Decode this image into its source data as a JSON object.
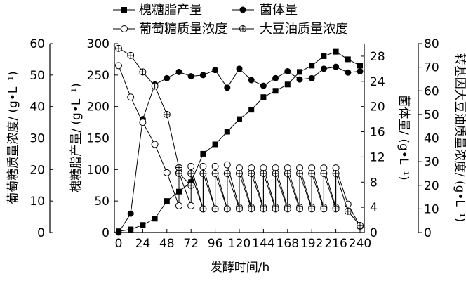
{
  "chart_data": {
    "type": "line",
    "xlabel": "发酵时间/h",
    "xlim": [
      0,
      240
    ],
    "xticks": [
      0,
      24,
      48,
      72,
      96,
      120,
      144,
      168,
      192,
      216,
      240
    ],
    "axes": {
      "y_glucose": {
        "label": "葡萄糖质量浓度/ (g•L⁻¹)",
        "lim": [
          0,
          60
        ],
        "ticks": [
          0,
          10,
          20,
          30,
          40,
          50,
          60
        ]
      },
      "y_lipid": {
        "label": "槐糖脂产量/ (g•L⁻¹)",
        "lim": [
          0,
          300
        ],
        "ticks": [
          0,
          50,
          100,
          150,
          200,
          250,
          300
        ]
      },
      "y_biomass": {
        "label": "菌体量/ (g•L⁻¹)",
        "lim": [
          0,
          30
        ],
        "ticks": [
          0,
          4,
          8,
          12,
          16,
          20,
          24,
          28
        ]
      },
      "y_oil": {
        "label": "转基因大豆油质量浓度/ (g•L⁻¹)",
        "lim": [
          0,
          80
        ],
        "ticks": [
          0,
          10,
          20,
          30,
          40,
          50,
          60,
          70,
          80
        ]
      }
    },
    "series": [
      {
        "name": "槐糖脂产量",
        "axis": "y_lipid",
        "marker": "filled-square",
        "x": [
          0,
          12,
          24,
          36,
          48,
          60,
          72,
          84,
          96,
          108,
          120,
          132,
          144,
          156,
          168,
          180,
          192,
          204,
          216,
          228,
          240
        ],
        "y": [
          2,
          5,
          12,
          22,
          50,
          65,
          80,
          125,
          140,
          160,
          180,
          195,
          215,
          225,
          235,
          255,
          265,
          280,
          287,
          275,
          265
        ]
      },
      {
        "name": "菌体量",
        "axis": "y_biomass",
        "marker": "filled-circle",
        "x": [
          0,
          12,
          24,
          36,
          48,
          60,
          72,
          84,
          96,
          108,
          120,
          132,
          144,
          156,
          168,
          180,
          192,
          204,
          216,
          228,
          240
        ],
        "y": [
          0,
          3,
          18,
          23.5,
          24.5,
          25.5,
          24.8,
          25,
          25.8,
          23,
          26,
          24.2,
          23.3,
          24.5,
          25.6,
          24.3,
          24.5,
          26,
          26.3,
          25.4,
          25.6
        ]
      },
      {
        "name": "葡萄糖质量浓度",
        "axis": "y_glucose",
        "marker": "open-circle",
        "x": [
          0,
          12,
          24,
          36,
          48,
          60,
          60,
          72,
          72,
          84,
          84,
          96,
          96,
          108,
          108,
          120,
          120,
          132,
          132,
          144,
          144,
          156,
          156,
          168,
          168,
          180,
          180,
          192,
          192,
          204,
          204,
          216,
          216,
          228,
          240
        ],
        "y": [
          53,
          43,
          35,
          28,
          19,
          8.5,
          19,
          8.5,
          21,
          7.5,
          21,
          7.5,
          21,
          7.5,
          21.5,
          8,
          20.5,
          8,
          20.5,
          8,
          20.5,
          8,
          20.5,
          8,
          20.5,
          8,
          20.5,
          8,
          20.5,
          8,
          20.5,
          8,
          20.5,
          9,
          2
        ]
      },
      {
        "name": "大豆油质量浓度",
        "axis": "y_oil",
        "marker": "crossed-circle",
        "x": [
          0,
          12,
          24,
          36,
          48,
          60,
          60,
          72,
          72,
          84,
          84,
          96,
          96,
          108,
          108,
          120,
          120,
          132,
          132,
          144,
          144,
          156,
          156,
          168,
          168,
          180,
          180,
          192,
          192,
          204,
          204,
          216,
          216,
          228,
          240
        ],
        "y": [
          78,
          75,
          68,
          62,
          50,
          27.5,
          25,
          20,
          25,
          10,
          25,
          10,
          25,
          10,
          25,
          10,
          25,
          10,
          25,
          10,
          25,
          10,
          25,
          10,
          25,
          10,
          25,
          10,
          25,
          10,
          25,
          10,
          25,
          9,
          3
        ]
      }
    ],
    "legend_position": "top"
  }
}
